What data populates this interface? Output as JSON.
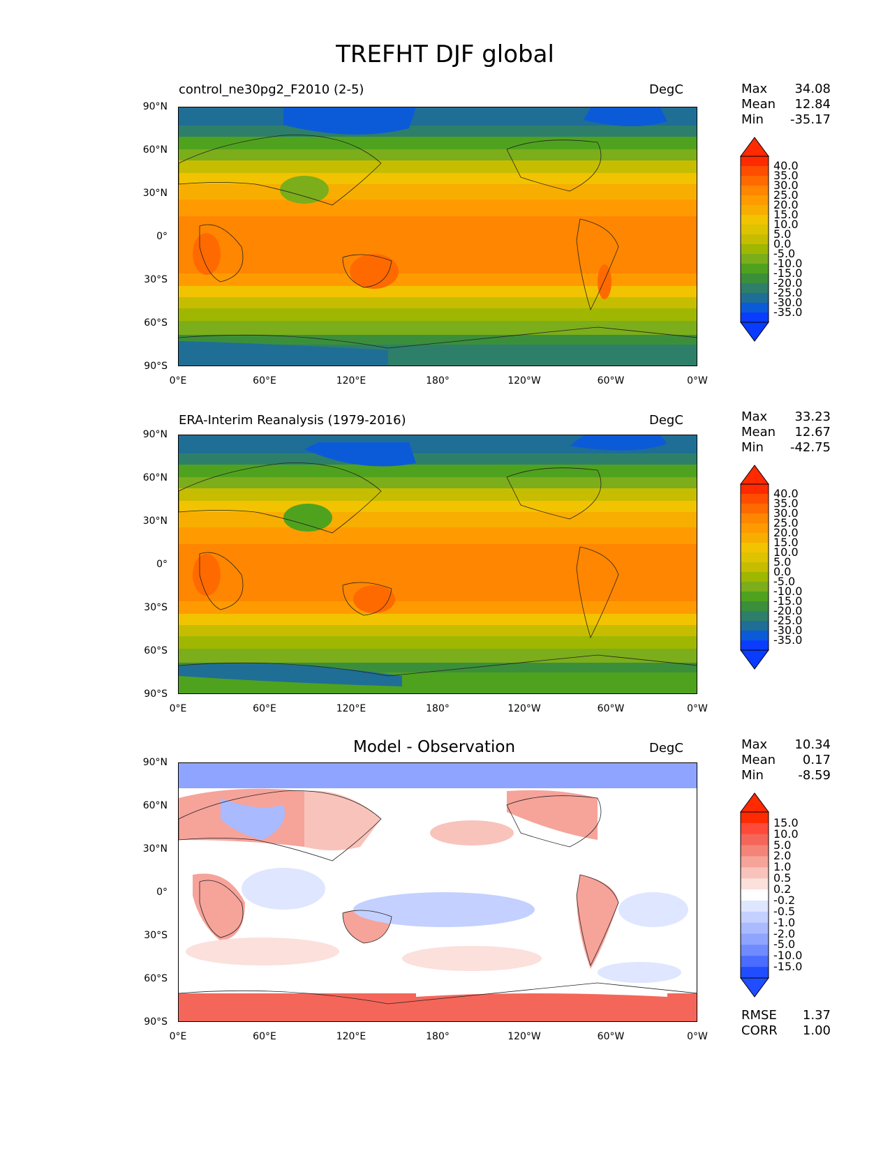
{
  "title": "TREFHT DJF global",
  "lat_ticks": [
    "90°N",
    "60°N",
    "30°N",
    "0°",
    "30°S",
    "60°S",
    "90°S"
  ],
  "lon_ticks": [
    "0°E",
    "60°E",
    "120°E",
    "180°",
    "120°W",
    "60°W",
    "0°W"
  ],
  "panels": [
    {
      "id": "control",
      "title": "control_ne30pg2_F2010 (2-5)",
      "units": "DegC",
      "stats": {
        "max_label": "Max",
        "max": "34.08",
        "mean_label": "Mean",
        "mean": "12.84",
        "min_label": "Min",
        "min": "-35.17"
      },
      "colorbar": {
        "labels": [
          "40.0",
          "35.0",
          "30.0",
          "25.0",
          "20.0",
          "15.0",
          "10.0",
          "5.0",
          "0.0",
          "-5.0",
          "-10.0",
          "-15.0",
          "-20.0",
          "-25.0",
          "-30.0",
          "-35.0"
        ],
        "colors": [
          "#ff2a00",
          "#ff4d00",
          "#ff6a00",
          "#ff8600",
          "#ff9b00",
          "#f7ae00",
          "#f2c300",
          "#ddc300",
          "#c7bd00",
          "#9fb700",
          "#7cad1a",
          "#4fa21e",
          "#3b8f3a",
          "#2e7f6a",
          "#1f6e96",
          "#0b5bd8",
          "#0a3cff"
        ],
        "over_color": "#ff2a00",
        "under_color": "#0a3cff"
      }
    },
    {
      "id": "obs",
      "title": "ERA-Interim Reanalysis (1979-2016)",
      "units": "DegC",
      "stats": {
        "max_label": "Max",
        "max": "33.23",
        "mean_label": "Mean",
        "mean": "12.67",
        "min_label": "Min",
        "min": "-42.75"
      },
      "colorbar": {
        "labels": [
          "40.0",
          "35.0",
          "30.0",
          "25.0",
          "20.0",
          "15.0",
          "10.0",
          "5.0",
          "0.0",
          "-5.0",
          "-10.0",
          "-15.0",
          "-20.0",
          "-25.0",
          "-30.0",
          "-35.0"
        ],
        "colors": [
          "#ff2a00",
          "#ff4d00",
          "#ff6a00",
          "#ff8600",
          "#ff9b00",
          "#f7ae00",
          "#f2c300",
          "#ddc300",
          "#c7bd00",
          "#9fb700",
          "#7cad1a",
          "#4fa21e",
          "#3b8f3a",
          "#2e7f6a",
          "#1f6e96",
          "#0b5bd8",
          "#0a3cff"
        ],
        "over_color": "#ff2a00",
        "under_color": "#0a3cff"
      }
    },
    {
      "id": "diff",
      "title": "Model - Observation",
      "units": "DegC",
      "stats": {
        "max_label": "Max",
        "max": "10.34",
        "mean_label": "Mean",
        "mean": "0.17",
        "min_label": "Min",
        "min": "-8.59"
      },
      "extra": {
        "rmse_label": "RMSE",
        "rmse": "1.37",
        "corr_label": "CORR",
        "corr": "1.00"
      },
      "colorbar": {
        "labels": [
          "15.0",
          "10.0",
          "5.0",
          "2.0",
          "1.0",
          "0.5",
          "0.2",
          "-0.2",
          "-0.5",
          "-1.0",
          "-2.0",
          "-5.0",
          "-10.0",
          "-15.0"
        ],
        "colors": [
          "#ff2a00",
          "#ff4a3a",
          "#f4665a",
          "#f58478",
          "#f6a39a",
          "#f8c3bb",
          "#fbe0dc",
          "#ffffff",
          "#dfe6ff",
          "#c4d0ff",
          "#a9baff",
          "#8ea4ff",
          "#6f8bff",
          "#4a6cff",
          "#1f4dff"
        ],
        "over_color": "#ff2a00",
        "under_color": "#1f4dff"
      }
    }
  ]
}
